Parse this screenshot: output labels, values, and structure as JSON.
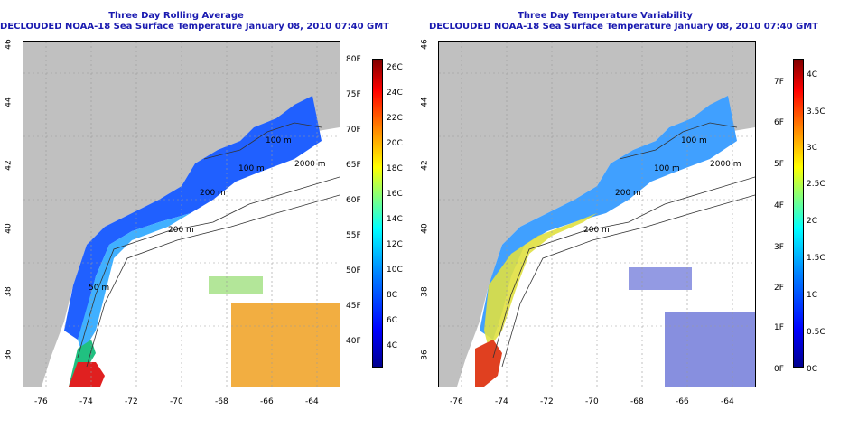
{
  "left": {
    "title": "Three Day Rolling Average",
    "subtitle": "DECLOUDED NOAA-18 Sea Surface Temperature January 08, 2010 07:40 GMT",
    "x_ticks": [
      "-76",
      "-74",
      "-72",
      "-70",
      "-68",
      "-66",
      "-64"
    ],
    "y_ticks": [
      "36",
      "38",
      "40",
      "42",
      "44",
      "46"
    ],
    "contours": [
      "100 m",
      "100 m",
      "200 m",
      "200 m",
      "2000 m",
      "50 m"
    ],
    "colorbar_f": [
      "80F",
      "75F",
      "70F",
      "65F",
      "60F",
      "55F",
      "50F",
      "45F",
      "40F"
    ],
    "colorbar_c": [
      "26C",
      "24C",
      "22C",
      "20C",
      "18C",
      "16C",
      "14C",
      "12C",
      "10C",
      "8C",
      "6C",
      "4C"
    ]
  },
  "right": {
    "title": "Three Day Temperature Variability",
    "subtitle": "DECLOUDED NOAA-18 Sea Surface Temperature January 08, 2010 07:40 GMT",
    "x_ticks": [
      "-76",
      "-74",
      "-72",
      "-70",
      "-68",
      "-66",
      "-64"
    ],
    "y_ticks": [
      "36",
      "38",
      "40",
      "42",
      "44",
      "46"
    ],
    "contours": [
      "100 m",
      "100 m",
      "200 m",
      "200 m",
      "2000 m"
    ],
    "colorbar_f": [
      "7F",
      "6F",
      "5F",
      "4F",
      "3F",
      "2F",
      "1F",
      "0F"
    ],
    "colorbar_c": [
      "4C",
      "3.5C",
      "3C",
      "2.5C",
      "2C",
      "1.5C",
      "1C",
      "0.5C",
      "0C"
    ]
  },
  "colors": {
    "land": "#c0c0c0",
    "title": "#1a1ab0",
    "jet": [
      "#00008f",
      "#0000ff",
      "#0080ff",
      "#00ffff",
      "#80ff80",
      "#ffff00",
      "#ff8000",
      "#ff0000",
      "#800000"
    ]
  }
}
